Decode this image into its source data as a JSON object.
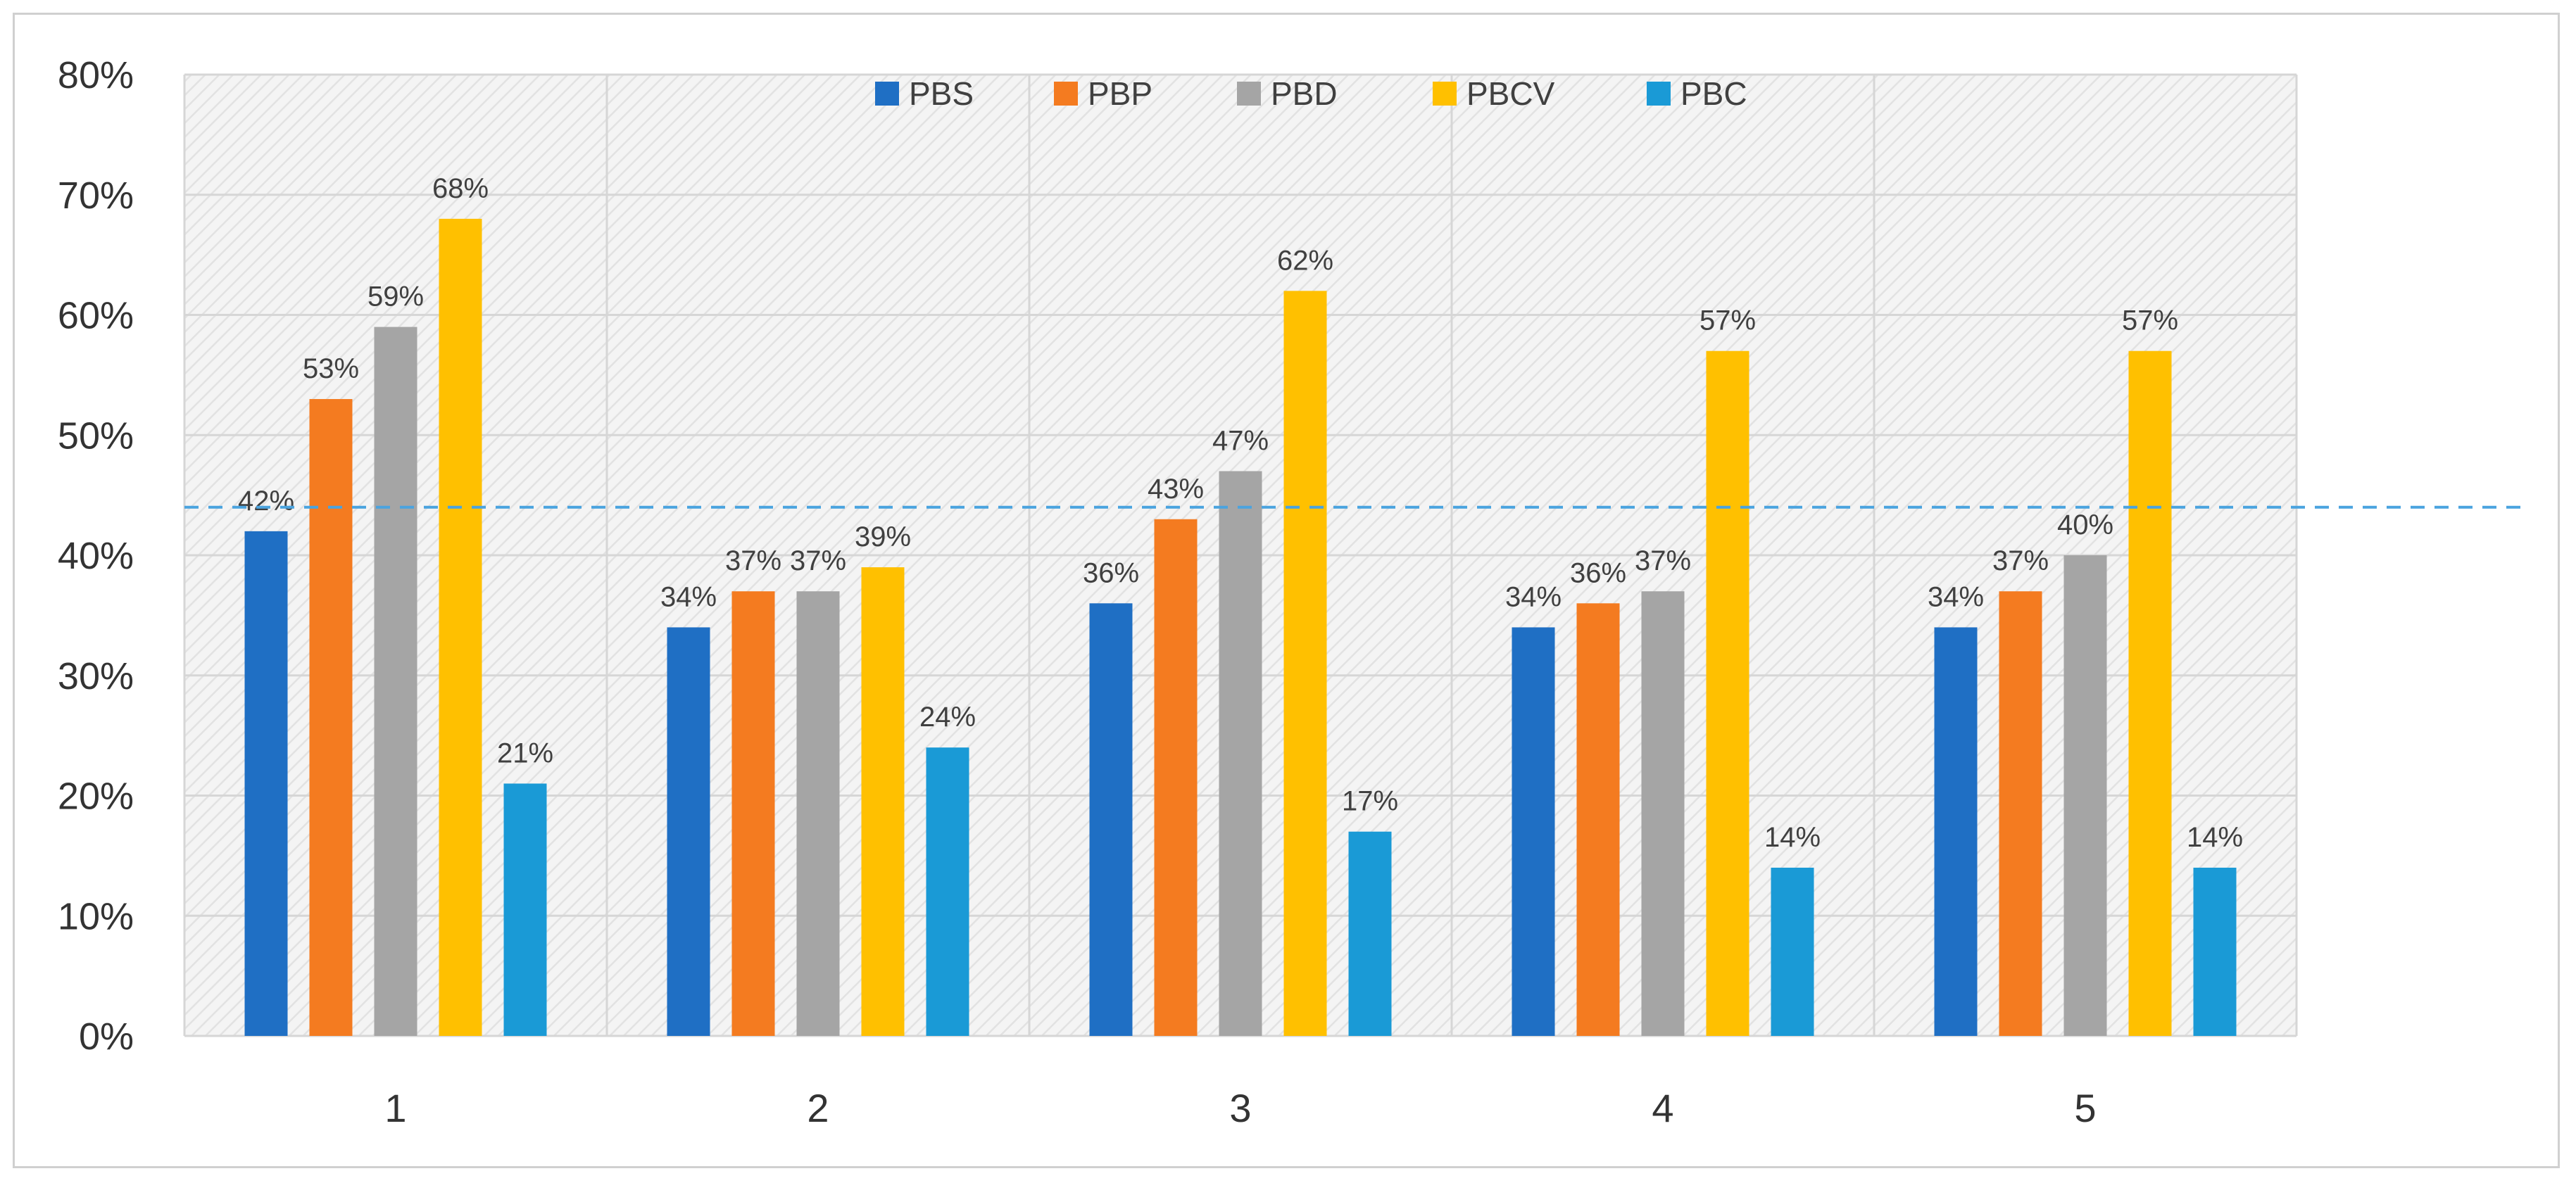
{
  "chart_data": {
    "type": "bar",
    "title": "",
    "xlabel": "",
    "ylabel": "",
    "categories": [
      "1",
      "2",
      "3",
      "4",
      "5"
    ],
    "series": [
      {
        "name": "PBS",
        "color": "#1f6fc4",
        "values": [
          42,
          34,
          36,
          34,
          34
        ],
        "labels": [
          "42%",
          "34%",
          "36%",
          "34%",
          "34%"
        ]
      },
      {
        "name": "PBP",
        "color": "#f47b20",
        "values": [
          53,
          37,
          43,
          36,
          37
        ],
        "labels": [
          "53%",
          "37%",
          "43%",
          "36%",
          "37%"
        ]
      },
      {
        "name": "PBD",
        "color": "#a5a5a5",
        "values": [
          59,
          37,
          47,
          37,
          40
        ],
        "labels": [
          "59%",
          "37%",
          "47%",
          "37%",
          "40%"
        ]
      },
      {
        "name": "PBCV",
        "color": "#ffc000",
        "values": [
          68,
          39,
          62,
          57,
          57
        ],
        "labels": [
          "68%",
          "39%",
          "62%",
          "57%",
          "57%"
        ]
      },
      {
        "name": "PBC",
        "color": "#1a9ad6",
        "values": [
          21,
          24,
          17,
          14,
          14
        ],
        "labels": [
          "21%",
          "24%",
          "17%",
          "14%",
          "14%"
        ]
      }
    ],
    "ylim": [
      0,
      80
    ],
    "yticks": [
      0,
      10,
      20,
      30,
      40,
      50,
      60,
      70,
      80
    ],
    "ytick_labels": [
      "0%",
      "10%",
      "20%",
      "30%",
      "40%",
      "50%",
      "60%",
      "70%",
      "80%"
    ],
    "reference_line": {
      "value": 44,
      "color": "#4aa3df",
      "style": "dashed"
    },
    "grid": true,
    "legend_position": "top"
  }
}
